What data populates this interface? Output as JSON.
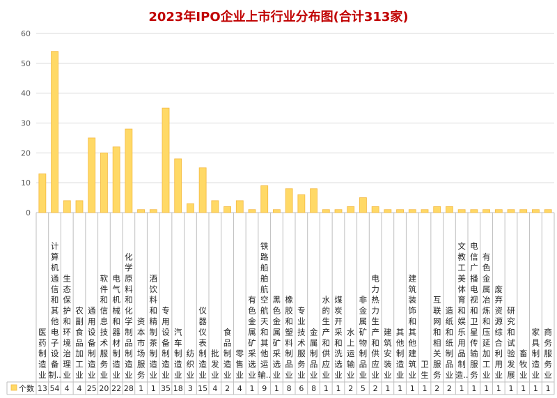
{
  "chart_data": {
    "type": "bar",
    "title": "2023年IPO企业上市行业分布图(合计313家)",
    "categories": [
      "医药制造业",
      "计算机通信和其他电子设备制...",
      "生态保护和环境治理业",
      "农副食品加工业",
      "通用设备制造业",
      "软件和信息技术服务业",
      "电气机械和器材制造业",
      "化学原料和化学制品制造业",
      "资本市场服务",
      "酒饮料和精制茶制造业",
      "专用设备制造业",
      "汽车制造业",
      "纺织业",
      "仪器仪表制造业",
      "批发业",
      "食品制造业",
      "零售业",
      "有色金属矿采选业",
      "铁路船舶航空航天和其他运输...",
      "黑色金属矿采选业",
      "橡胶和塑料制品业",
      "专业技术服务业",
      "金属制品业",
      "水的生产和供应业",
      "煤炭开采和洗选业",
      "水上运输业",
      "非金属矿物制品业",
      "电力热力生产和供应业",
      "建筑安装业",
      "其他制造业",
      "建筑装饰和其他建筑业",
      "卫生",
      "互联网和相关服务",
      "造纸和纸制品业",
      "文教工美体育和娱乐用品制造...",
      "电信广播电视和卫星传输服务",
      "有色金属冶炼和压延加工业",
      "废弃资源综合利用业",
      "研究和试验发展",
      "畜牧业",
      "家具制造业",
      "商务服务业"
    ],
    "series": [
      {
        "name": "个数",
        "values": [
          13,
          54,
          4,
          4,
          25,
          20,
          22,
          28,
          1,
          1,
          35,
          18,
          3,
          15,
          4,
          2,
          4,
          1,
          9,
          1,
          8,
          6,
          8,
          1,
          1,
          2,
          5,
          2,
          1,
          1,
          1,
          1,
          2,
          2,
          1,
          1,
          1,
          1,
          1,
          1,
          1,
          1
        ]
      }
    ],
    "yticks": [
      "0",
      "10",
      "20",
      "30",
      "40",
      "50",
      "60"
    ],
    "ylim": [
      0,
      60
    ],
    "grid": true,
    "legend": "bottom-left (data table)",
    "colors": {
      "bar_fill": "#ffd966",
      "bar_stroke": "#f4b942",
      "title": "#c00000"
    }
  }
}
